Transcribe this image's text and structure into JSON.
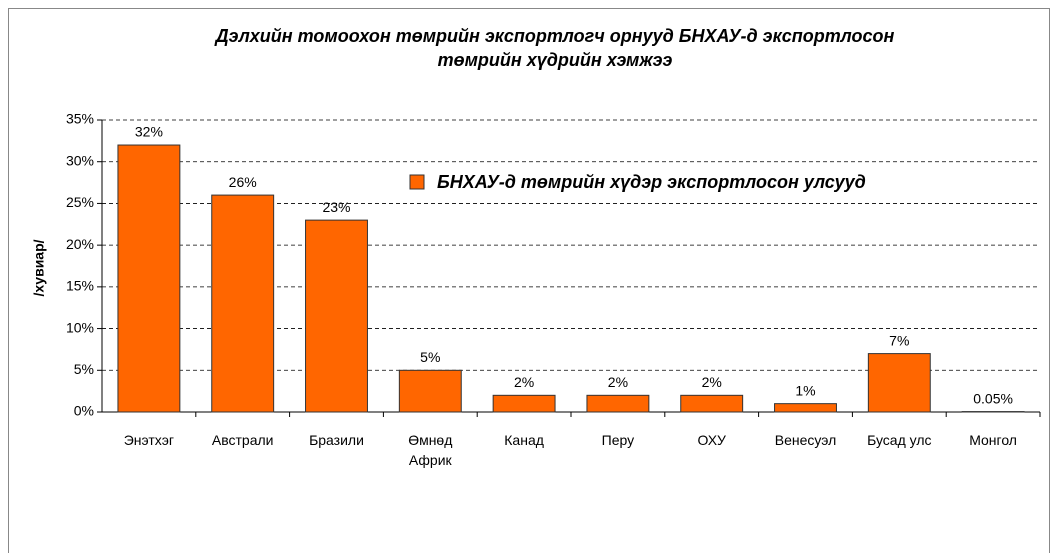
{
  "chart_data": {
    "type": "bar",
    "title": "Дэлхийн томоохон төмрийн экспортлогч орнууд БНХАУ-д экспортлосон төмрийн хүдрийн хэмжээ",
    "ylabel": "/хувиар/",
    "categories": [
      "Энэтхэг",
      "Австрали",
      "Бразили",
      "Өмнөд Африк",
      "Канад",
      "Перу",
      "ОХУ",
      "Венесуэл",
      "Бусад улс",
      "Монгол"
    ],
    "series": [
      {
        "name": "БНХАУ-д төмрийн хүдэр экспортлосон улсууд",
        "color": "#ff6600",
        "values": [
          32,
          26,
          23,
          5,
          2,
          2,
          2,
          1,
          7,
          0.05
        ],
        "value_labels": [
          "32%",
          "26%",
          "23%",
          "5%",
          "2%",
          "2%",
          "2%",
          "1%",
          "7%",
          "0.05%"
        ]
      }
    ],
    "ylim": [
      0,
      35
    ],
    "yticks": [
      {
        "value": 0,
        "label": "0%"
      },
      {
        "value": 5,
        "label": "5%"
      },
      {
        "value": 10,
        "label": "10%"
      },
      {
        "value": 15,
        "label": "15%"
      },
      {
        "value": 20,
        "label": "20%"
      },
      {
        "value": 25,
        "label": "25%"
      },
      {
        "value": 30,
        "label": "30%"
      },
      {
        "value": 35,
        "label": "35%"
      }
    ],
    "grid": true
  }
}
